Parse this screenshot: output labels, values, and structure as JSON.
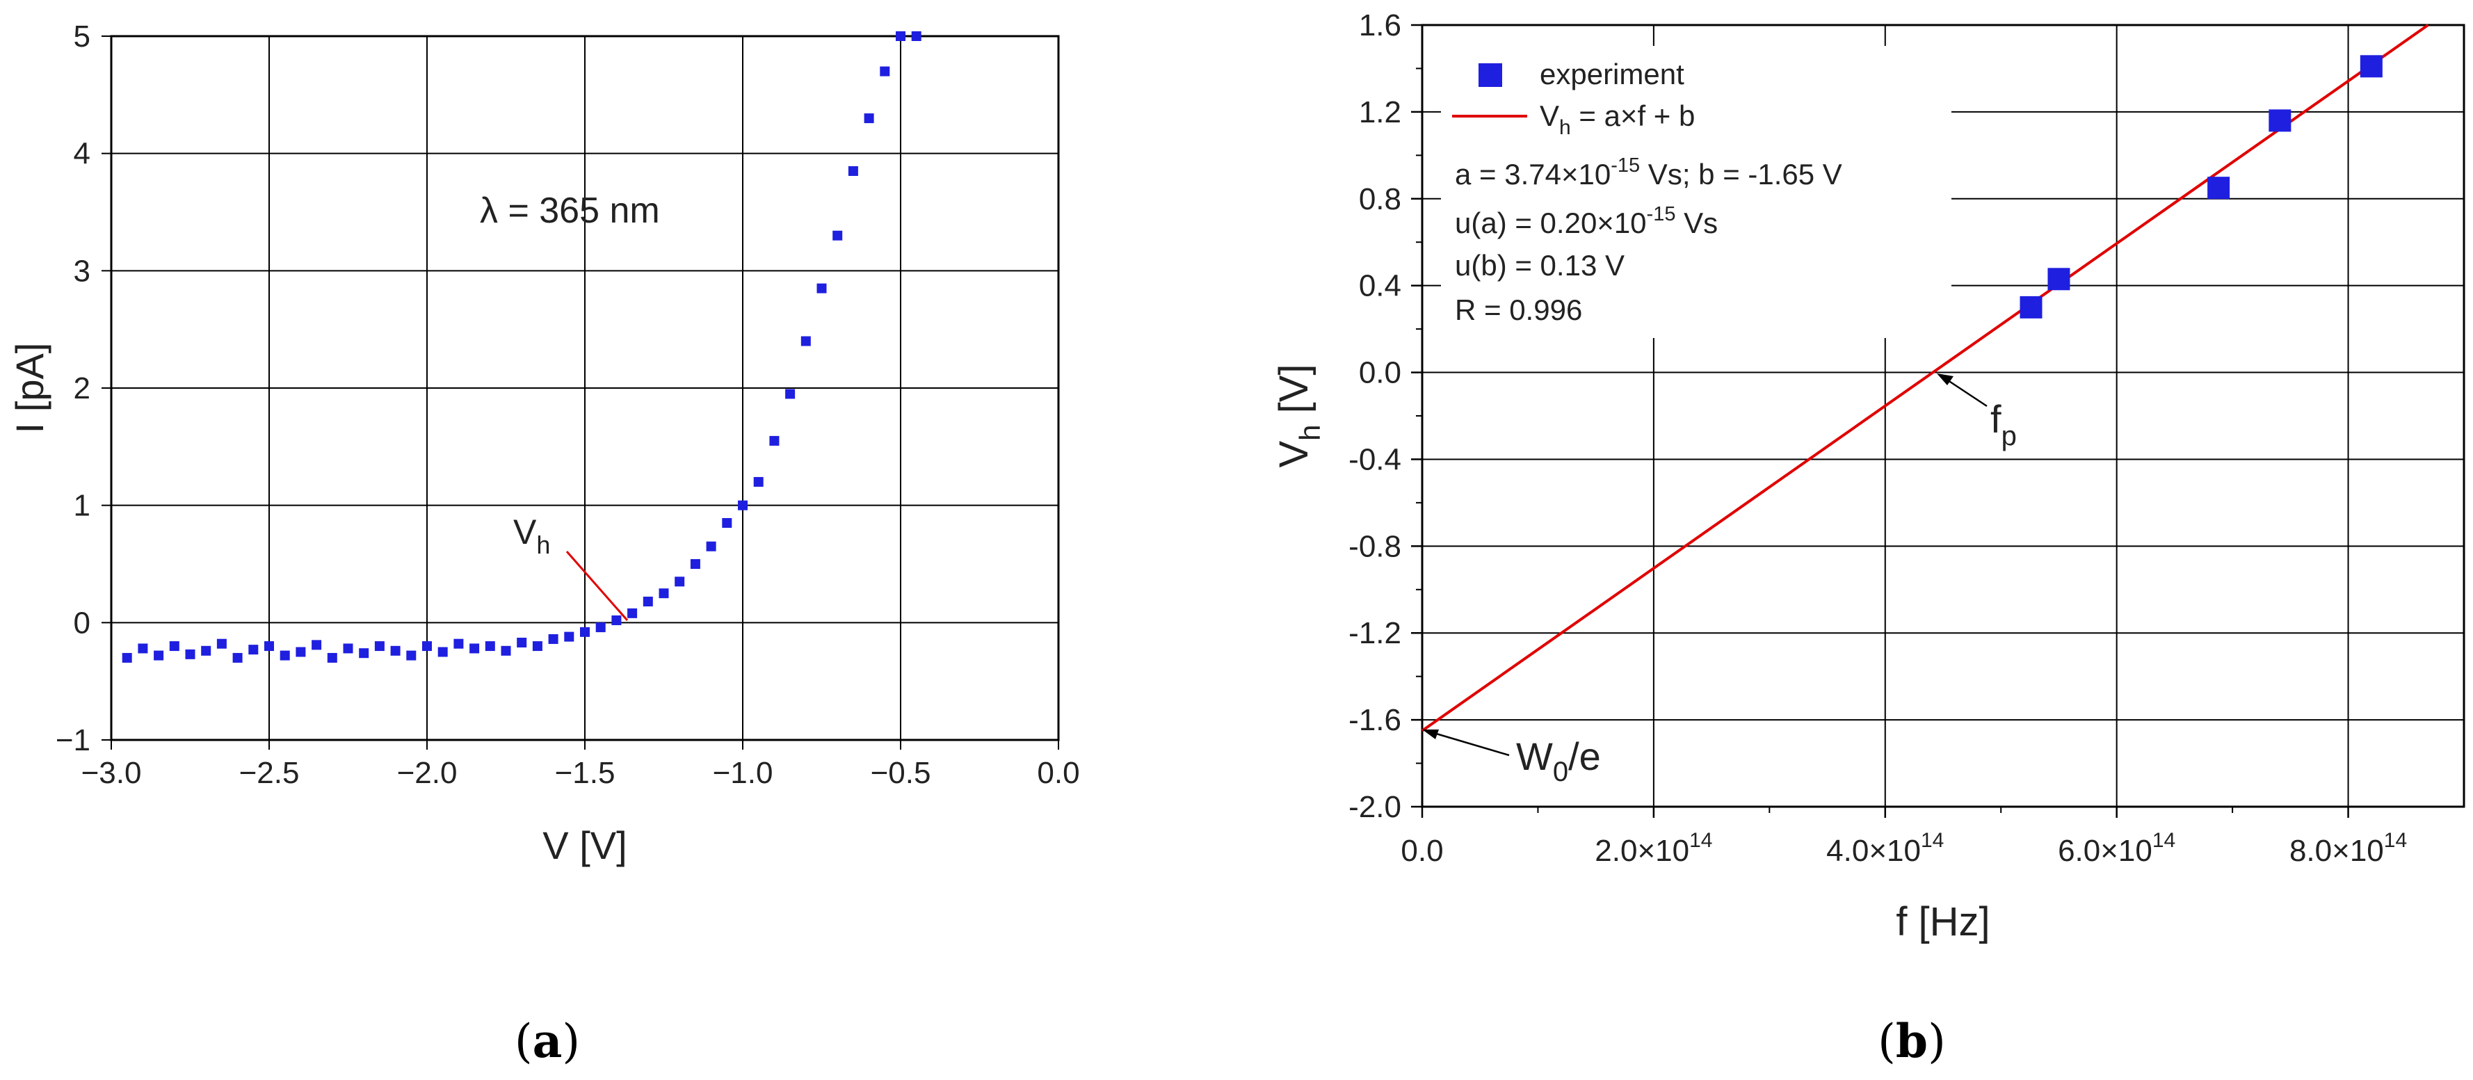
{
  "chart_data": [
    {
      "type": "scatter",
      "panel_label": "a",
      "xlabel": "V [V]",
      "ylabel": "I [pA]",
      "xlim": [
        -3.0,
        0.0
      ],
      "ylim": [
        -1,
        5
      ],
      "x_ticks": [
        "−3.0",
        "−2.5",
        "−2.0",
        "−1.5",
        "−1.0",
        "−0.5",
        "0.0"
      ],
      "y_ticks": [
        "−1",
        "0",
        "1",
        "2",
        "3",
        "4",
        "5"
      ],
      "grid": true,
      "annotations": {
        "wavelength": "λ = 365 nm",
        "vh_main": "V",
        "vh_sub": "h"
      },
      "colors": {
        "points": "#1f1fe0",
        "marker_line": "#e00000"
      },
      "series": [
        {
          "x": [
            -2.95,
            -2.9,
            -2.85,
            -2.8,
            -2.75,
            -2.7,
            -2.65,
            -2.6,
            -2.55,
            -2.5,
            -2.45,
            -2.4,
            -2.35,
            -2.3,
            -2.25,
            -2.2,
            -2.15,
            -2.1,
            -2.05,
            -2.0,
            -1.95,
            -1.9,
            -1.85,
            -1.8,
            -1.75,
            -1.7,
            -1.65,
            -1.6,
            -1.55,
            -1.5,
            -1.45,
            -1.4,
            -1.35,
            -1.3,
            -1.25,
            -1.2,
            -1.15,
            -1.1,
            -1.05,
            -1.0,
            -0.95,
            -0.9,
            -0.85,
            -0.8,
            -0.75,
            -0.7,
            -0.65,
            -0.6,
            -0.55,
            -0.5,
            -0.45
          ],
          "values": [
            -0.3,
            -0.22,
            -0.28,
            -0.2,
            -0.27,
            -0.24,
            -0.18,
            -0.3,
            -0.23,
            -0.2,
            -0.28,
            -0.25,
            -0.19,
            -0.3,
            -0.22,
            -0.26,
            -0.2,
            -0.24,
            -0.28,
            -0.2,
            -0.25,
            -0.18,
            -0.22,
            -0.2,
            -0.24,
            -0.17,
            -0.2,
            -0.14,
            -0.12,
            -0.08,
            -0.04,
            0.02,
            0.08,
            0.18,
            0.25,
            0.35,
            0.5,
            0.65,
            0.85,
            1.0,
            1.2,
            1.55,
            1.95,
            2.4,
            2.85,
            3.3,
            3.85,
            4.3,
            4.7,
            5.0,
            5.0
          ]
        }
      ]
    },
    {
      "type": "scatter",
      "panel_label": "b",
      "xlabel": "f [Hz]",
      "ylabel_main": "V",
      "ylabel_sub": "h",
      "ylabel_unit": " [V]",
      "xlim": [
        0,
        900000000000000.0
      ],
      "ylim": [
        -2.0,
        1.6
      ],
      "x_ticks": [
        {
          "pre": "0.0",
          "exp": ""
        },
        {
          "pre": "2.0×10",
          "exp": "14"
        },
        {
          "pre": "4.0×10",
          "exp": "14"
        },
        {
          "pre": "6.0×10",
          "exp": "14"
        },
        {
          "pre": "8.0×10",
          "exp": "14"
        }
      ],
      "y_ticks": [
        "1.6",
        "1.2",
        "0.8",
        "0.4",
        "0.0",
        "-0.4",
        "-0.8",
        "-1.2",
        "-1.6",
        "-2.0"
      ],
      "grid": true,
      "legend": {
        "placement": "top-left",
        "experiment": "experiment",
        "fit_main": "V",
        "fit_sub": "h",
        "fit_rest": " = a×f + b"
      },
      "stats": {
        "a_pre": "a = 3.74×10",
        "a_exp": "-15",
        "a_post": " Vs; b = -1.65 V",
        "ua_pre": "u(a) = 0.20×10",
        "ua_exp": "-15",
        "ua_post": " Vs",
        "ub": "u(b) = 0.13 V",
        "r": "R = 0.996"
      },
      "annotations": {
        "fp_main": "f",
        "fp_sub": "p",
        "w0_main": "W",
        "w0_sub": "0",
        "w0_rest": "/e"
      },
      "colors": {
        "points": "#1f1fe0",
        "fit": "#e00000"
      },
      "series": [
        {
          "name": "experiment",
          "x": [
            526000000000000.0,
            550000000000000.0,
            688000000000000.0,
            741000000000000.0,
            820000000000000.0
          ],
          "values": [
            0.3,
            0.43,
            0.85,
            1.16,
            1.41
          ]
        }
      ],
      "fit": {
        "a": 3.74e-15,
        "b": -1.65
      }
    }
  ]
}
